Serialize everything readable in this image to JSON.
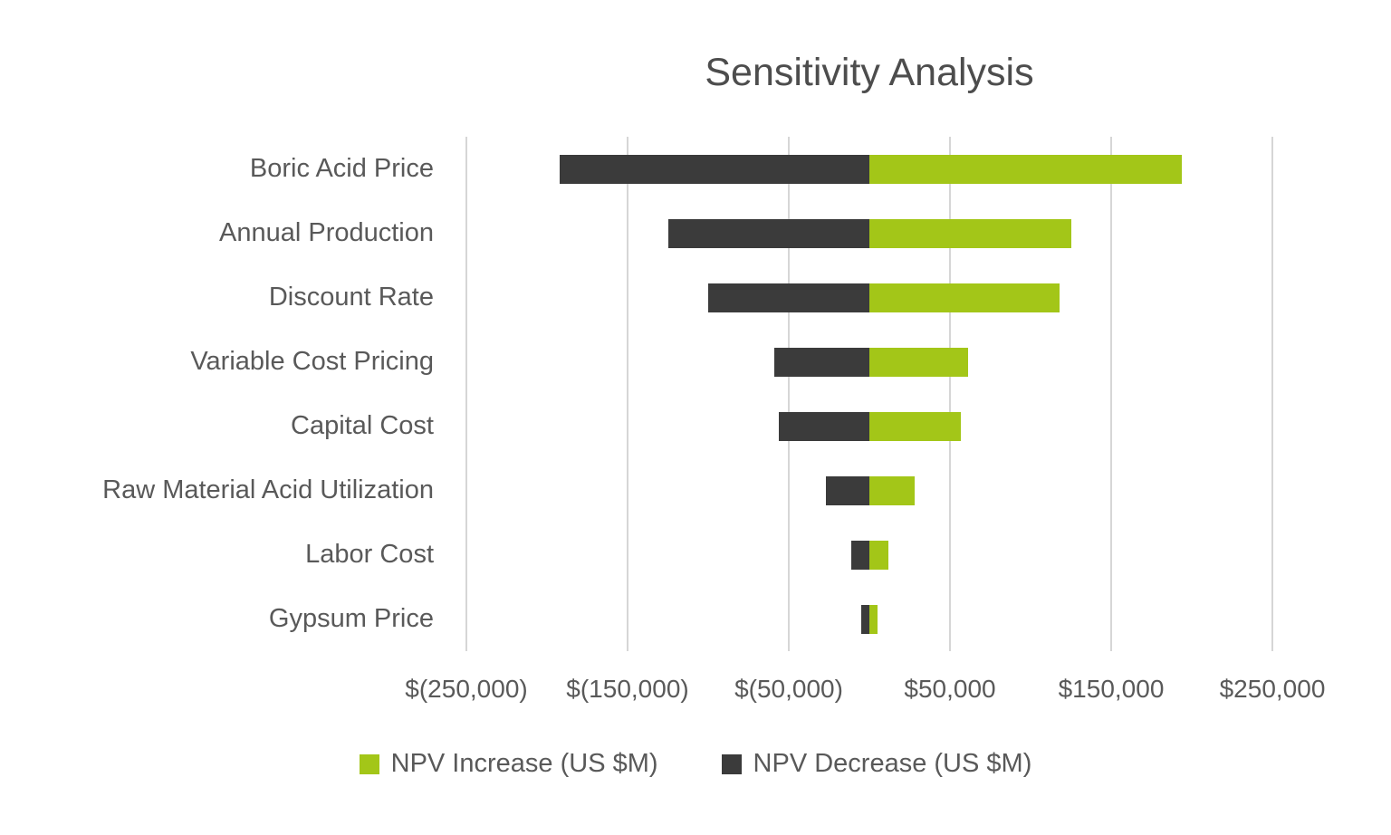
{
  "colors": {
    "increase": "#a3c618",
    "decrease": "#3b3b3b",
    "gridline": "#d6d6d6",
    "text": "#595959",
    "title": "#4d4d4d",
    "background": "#ffffff"
  },
  "chart_data": {
    "type": "bar",
    "orientation": "horizontal",
    "title": "Sensitivity Analysis",
    "xlabel": "",
    "ylabel": "",
    "grid": "vertical-on",
    "legend_position": "bottom",
    "xlim": [
      -250000,
      250000
    ],
    "categories": [
      "Boric Acid Price",
      "Annual Production",
      "Discount Rate",
      "Variable Cost Pricing",
      "Capital Cost",
      "Raw Material Acid Utilization",
      "Labor Cost",
      "Gypsum Price"
    ],
    "series": [
      {
        "name": "NPV Increase (US $M)",
        "color": "#a3c618",
        "values": [
          194000,
          125000,
          118000,
          61000,
          57000,
          28000,
          12000,
          5000
        ]
      },
      {
        "name": "NPV Decrease (US $M)",
        "color": "#3b3b3b",
        "values": [
          -192000,
          -125000,
          -100000,
          -59000,
          -56000,
          -27000,
          -11000,
          -5000
        ]
      }
    ],
    "x_ticks": [
      {
        "value": -250000,
        "label": "$(250,000)"
      },
      {
        "value": -150000,
        "label": "$(150,000)"
      },
      {
        "value": -50000,
        "label": "$(50,000)"
      },
      {
        "value": 50000,
        "label": "$50,000"
      },
      {
        "value": 150000,
        "label": "$150,000"
      },
      {
        "value": 250000,
        "label": "$250,000"
      }
    ]
  }
}
